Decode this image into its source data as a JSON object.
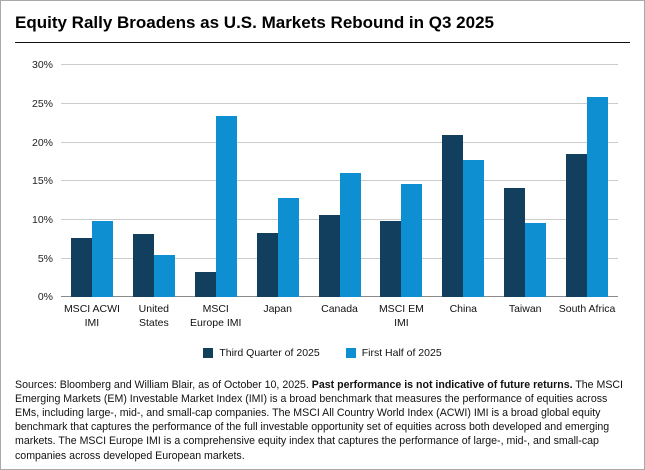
{
  "title": "Equity Rally Broadens as U.S. Markets Rebound in Q3 2025",
  "chart_data": {
    "type": "bar",
    "title": "Equity Rally Broadens as U.S. Markets Rebound in Q3 2025",
    "categories": [
      "MSCI ACWI IMI",
      "United States",
      "MSCI Europe IMI",
      "Japan",
      "Canada",
      "MSCI EM IMI",
      "China",
      "Taiwan",
      "South Africa"
    ],
    "category_display": [
      "MSCI ACWI\nIMI",
      "United\nStates",
      "MSCI\nEurope IMI",
      "Japan",
      "Canada",
      "MSCI EM IMI",
      "China",
      "Taiwan",
      "South Africa"
    ],
    "series": [
      {
        "name": "Third Quarter of 2025",
        "color": "#123f5e",
        "values": [
          7.7,
          8.2,
          3.3,
          8.3,
          10.6,
          9.9,
          21.0,
          14.1,
          18.5
        ]
      },
      {
        "name": "First Half of 2025",
        "color": "#0e8fd2",
        "values": [
          9.9,
          5.5,
          23.5,
          12.8,
          16.1,
          14.7,
          17.8,
          9.6,
          25.9
        ]
      }
    ],
    "ylabel": "",
    "xlabel": "",
    "ylim": [
      0,
      30
    ],
    "ytick_step": 5,
    "ytick_labels": [
      "0%",
      "5%",
      "10%",
      "15%",
      "20%",
      "25%",
      "30%"
    ],
    "grid": true,
    "legend_position": "bottom"
  },
  "footer": {
    "prefix": "Sources: Bloomberg and William Blair, as of October 10, 2025. ",
    "bold": "Past performance is not indicative of future returns.",
    "rest": " The MSCI Emerging Markets (EM) Investable Market Index (IMI) is a broad benchmark that measures the performance of equities across EMs, including large-, mid-, and small-cap companies. The MSCI All Country World Index (ACWI) IMI is a broad global equity benchmark that captures the performance of the full investable opportunity set of equities across both developed and emerging markets. The MSCI Europe IMI is a comprehensive equity index that captures the performance of large-, mid-, and small-cap companies across developed European markets."
  }
}
